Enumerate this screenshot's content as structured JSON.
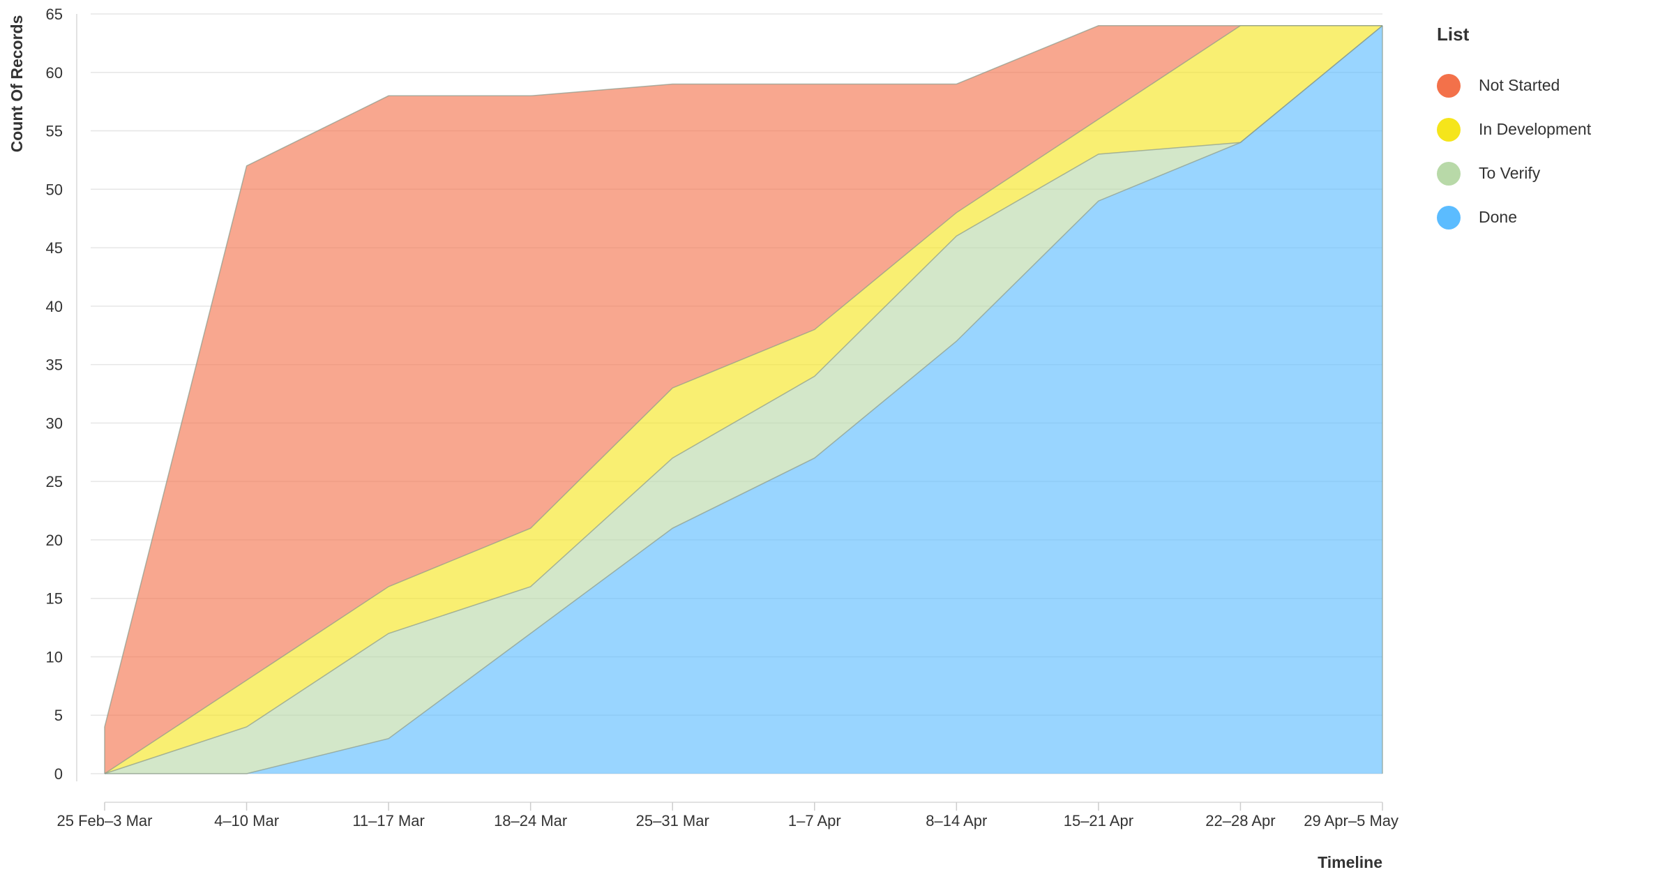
{
  "chart_data": {
    "type": "area",
    "stacked": true,
    "categories": [
      "25 Feb–3 Mar",
      "4–10 Mar",
      "11–17 Mar",
      "18–24 Mar",
      "25–31 Mar",
      "1–7 Apr",
      "8–14 Apr",
      "15–21 Apr",
      "22–28 Apr",
      "29 Apr–5 May"
    ],
    "series": [
      {
        "name": "Done",
        "color": "#5bbcff",
        "values": [
          0,
          0,
          3,
          12,
          21,
          27,
          37,
          49,
          54,
          64
        ]
      },
      {
        "name": "To Verify",
        "color": "#b8d9a8",
        "values": [
          0,
          4,
          9,
          4,
          6,
          7,
          9,
          4,
          0,
          0
        ]
      },
      {
        "name": "In Development",
        "color": "#f5e51b",
        "values": [
          0,
          4,
          4,
          5,
          6,
          4,
          2,
          3,
          10,
          0
        ]
      },
      {
        "name": "Not Started",
        "color": "#f3714a",
        "values": [
          4,
          44,
          42,
          37,
          26,
          21,
          11,
          8,
          0,
          0
        ]
      }
    ],
    "xlabel": "Timeline",
    "ylabel": "Count Of Records",
    "ylim": [
      0,
      65
    ],
    "yticks": [
      0,
      5,
      10,
      15,
      20,
      25,
      30,
      35,
      40,
      45,
      50,
      55,
      60,
      65
    ],
    "grid": true,
    "legend_position": "right"
  },
  "legend": {
    "title": "List",
    "items": [
      {
        "label": "Not Started",
        "color": "#f3714a"
      },
      {
        "label": "In Development",
        "color": "#f5e51b"
      },
      {
        "label": "To Verify",
        "color": "#b8d9a8"
      },
      {
        "label": "Done",
        "color": "#5bbcff"
      }
    ]
  }
}
